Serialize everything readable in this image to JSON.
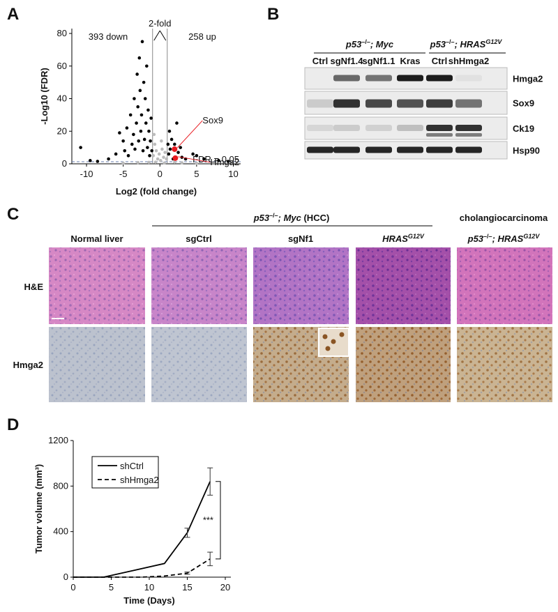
{
  "panel_labels": [
    "A",
    "B",
    "C",
    "D"
  ],
  "chart_data": [
    {
      "type": "scatter",
      "x_label": "Log2 (fold change)",
      "y_label": "-Log10 (FDR)",
      "xlim": [
        -12,
        11
      ],
      "ylim": [
        0,
        83
      ],
      "xticks": [
        -10,
        -5,
        0,
        5,
        10
      ],
      "yticks": [
        0,
        20,
        40,
        60,
        80
      ],
      "series": [
        {
          "color": "#bbbbbb",
          "x": [
            -0.9,
            -0.7,
            -0.5,
            -0.3,
            -0.1,
            0.1,
            0.3,
            0.5,
            0.7,
            0.9,
            -0.6,
            0.6,
            -3,
            3,
            -5,
            5,
            -0.8,
            0.2,
            -1.5,
            2
          ],
          "values": [
            5,
            12,
            8,
            3,
            6,
            2,
            9,
            4,
            7,
            3,
            1,
            0.5,
            0.8,
            0.6,
            0.4,
            0.3,
            18,
            14,
            0.9,
            1
          ]
        },
        {
          "color": "#000000",
          "x": [
            -10.8,
            -9.5,
            -8.5,
            -7,
            -6,
            -5.5,
            -5,
            -4.8,
            -4.5,
            -4.3,
            -4,
            -3.8,
            -3.6,
            -3.5,
            -3.4,
            -3.2,
            -3.1,
            -3,
            -2.9,
            -2.8,
            -2.7,
            -2.6,
            -2.5,
            -2.4,
            -2.3,
            -2.2,
            -2.1,
            -2,
            -1.9,
            -1.8,
            -1.7,
            -1.6,
            -1.5,
            -1.4,
            -1.3,
            -1.2,
            -1.1,
            1.1,
            1.2,
            1.3,
            1.4,
            1.6,
            1.8,
            2,
            2.3,
            2.5,
            2.8,
            3,
            3.5,
            4.5,
            5,
            6,
            8,
            9.3
          ],
          "values": [
            10,
            2,
            1.5,
            3,
            6,
            19,
            14,
            8,
            22,
            5,
            30,
            12,
            18,
            40,
            9,
            25,
            55,
            35,
            14,
            65,
            45,
            20,
            30,
            75,
            8,
            50,
            15,
            40,
            25,
            60,
            10,
            33,
            20,
            5,
            14,
            28,
            8,
            12,
            6,
            20,
            9,
            15,
            3,
            12,
            25,
            7,
            10,
            4,
            3,
            6,
            5,
            3,
            2,
            1.5
          ]
        }
      ],
      "fold_lines": [
        -1,
        1
      ],
      "fold_label": "2-fold",
      "threshold": 1.3,
      "threshold_label": "FDR = 0.05",
      "down_label": "393 down",
      "up_label": "258 up",
      "highlights": [
        {
          "text": "Sox9",
          "x": 2,
          "y": 9,
          "color": "#e8191f"
        },
        {
          "text": "Hmga2",
          "x": 2.1,
          "y": 3.5,
          "color": "#e8191f"
        }
      ]
    },
    {
      "type": "line",
      "x_label": "Time (Days)",
      "y_label": "Tumor volume (mm³)",
      "xlim": [
        0,
        20
      ],
      "ylim": [
        0,
        1200
      ],
      "xticks": [
        0,
        5,
        10,
        15,
        20
      ],
      "yticks": [
        0,
        400,
        800,
        1200
      ],
      "series": [
        {
          "name": "shCtrl",
          "color": "#000000",
          "dash": "solid",
          "x": [
            0,
            4,
            8,
            12,
            15,
            18
          ],
          "values": [
            0,
            0,
            60,
            120,
            390,
            840
          ],
          "errors": [
            null,
            null,
            null,
            null,
            40,
            120
          ]
        },
        {
          "name": "shHmga2",
          "color": "#000000",
          "dash": "dashed",
          "x": [
            0,
            4,
            9,
            12,
            15,
            18
          ],
          "values": [
            0,
            0,
            0,
            10,
            35,
            160
          ],
          "errors": [
            null,
            null,
            null,
            null,
            10,
            60
          ]
        }
      ],
      "significance": "***"
    }
  ],
  "blot": {
    "groups": [
      {
        "a": "p53",
        "sup": "–/–",
        "b": "; Myc"
      },
      {
        "a": "p53",
        "sup": "–/–",
        "b": "; HRAS",
        "gene_sup": "G12V"
      }
    ],
    "lanes": [
      "Ctrl",
      "sgNf1.4",
      "sgNf1.1",
      "Kras",
      "Ctrl",
      "shHmga2"
    ],
    "proteins": [
      "Hmga2",
      "Sox9",
      "Ck19",
      "Hsp90"
    ]
  },
  "ihc": {
    "group_title": {
      "a": "p53",
      "sup": "–/–",
      "b": "; Myc",
      "c": " (HCC)"
    },
    "side_title": "cholangiocarcinoma",
    "columns": [
      {
        "text": "Normal liver"
      },
      {
        "text": "sgCtrl"
      },
      {
        "text": "sgNf1"
      },
      {
        "gene": "HRAS",
        "sup": "G12V"
      },
      {
        "a": "p53",
        "sup": "–/–",
        "b": "; HRAS",
        "gene_sup": "G12V"
      }
    ],
    "rows": [
      "H&E",
      "Hmga2"
    ]
  }
}
